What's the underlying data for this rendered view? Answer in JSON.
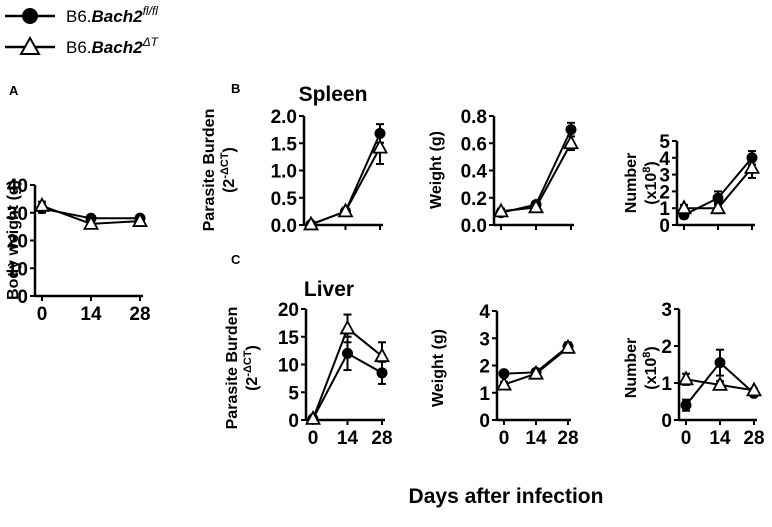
{
  "legend": [
    {
      "prefix": "B6.",
      "gene": "Bach2",
      "sup": "fl/fl",
      "marker": "filled-circle"
    },
    {
      "prefix": "B6.",
      "gene": "Bach2",
      "sup": "ΔT",
      "marker": "open-triangle"
    }
  ],
  "panel_letters": {
    "a": "A",
    "b": "B",
    "c": "C"
  },
  "titles": {
    "spleen": "Spleen",
    "liver": "Liver"
  },
  "x_axis_label": "Days after infection",
  "chart_data": [
    {
      "id": "A",
      "type": "line",
      "title": "",
      "ylabel": "Body weight (g)",
      "ylim": [
        0,
        40
      ],
      "yticks": [
        0,
        10,
        20,
        30,
        40
      ],
      "x": [
        0,
        14,
        28
      ],
      "xticks": [
        0,
        14,
        28
      ],
      "xlim": [
        0,
        28
      ],
      "series": [
        {
          "marker": "filled-circle",
          "values": [
            31.5,
            28,
            28
          ],
          "errors": [
            1.5,
            0.5,
            0.5
          ]
        },
        {
          "marker": "open-triangle",
          "values": [
            32.5,
            26,
            27
          ],
          "errors": [
            1.5,
            1,
            0.5
          ]
        }
      ]
    },
    {
      "id": "B-parasite",
      "type": "line",
      "title": "Spleen",
      "ylabel": "Parasite Burden",
      "ylabel_sub": "(2",
      "ylabel_sup": "-ΔCT",
      "ylabel_end": ")",
      "ylim": [
        0,
        2
      ],
      "yticks": [
        0.0,
        0.5,
        1.0,
        1.5,
        2.0
      ],
      "x": [
        0,
        14,
        28
      ],
      "xticks": [],
      "xlim": [
        0,
        28
      ],
      "series": [
        {
          "marker": "filled-circle",
          "values": [
            0.01,
            0.25,
            1.68
          ],
          "errors": [
            0.01,
            0.03,
            0.17
          ]
        },
        {
          "marker": "open-triangle",
          "values": [
            0.01,
            0.25,
            1.42
          ],
          "errors": [
            0.01,
            0.03,
            0.3
          ]
        }
      ]
    },
    {
      "id": "B-weight",
      "type": "line",
      "title": "",
      "ylabel": "Weight (g)",
      "ylim": [
        0,
        0.8
      ],
      "yticks": [
        0.0,
        0.2,
        0.4,
        0.6,
        0.8
      ],
      "x": [
        0,
        14,
        28
      ],
      "xticks": [],
      "xlim": [
        0,
        28
      ],
      "series": [
        {
          "marker": "filled-circle",
          "values": [
            0.09,
            0.15,
            0.7
          ],
          "errors": [
            0.02,
            0.02,
            0.05
          ]
        },
        {
          "marker": "open-triangle",
          "values": [
            0.1,
            0.13,
            0.6
          ],
          "errors": [
            0.02,
            0.02,
            0.05
          ]
        }
      ]
    },
    {
      "id": "B-number",
      "type": "line",
      "title": "",
      "ylabel": "Number",
      "ylabel_sub": "(x10",
      "ylabel_sup": "8",
      "ylabel_end": ")",
      "ylim": [
        0,
        5
      ],
      "yticks": [
        0,
        1,
        2,
        3,
        4,
        5
      ],
      "x": [
        0,
        14,
        28
      ],
      "xticks": [],
      "xlim": [
        0,
        28
      ],
      "series": [
        {
          "marker": "filled-circle",
          "values": [
            0.6,
            1.6,
            4.0
          ],
          "errors": [
            0.2,
            0.4,
            0.4
          ]
        },
        {
          "marker": "open-triangle",
          "values": [
            1.0,
            1.0,
            3.4
          ],
          "errors": [
            0.2,
            0.3,
            0.6
          ]
        }
      ]
    },
    {
      "id": "C-parasite",
      "type": "line",
      "title": "Liver",
      "ylabel": "Parasite Burden",
      "ylabel_sub": "(2",
      "ylabel_sup": "-ΔCT",
      "ylabel_end": ")",
      "ylim": [
        0,
        20
      ],
      "yticks": [
        0,
        5,
        10,
        15,
        20
      ],
      "x": [
        0,
        14,
        28
      ],
      "xticks": [
        0,
        14,
        28
      ],
      "xlim": [
        0,
        28
      ],
      "series": [
        {
          "marker": "filled-circle",
          "values": [
            0.2,
            12,
            8.5
          ],
          "errors": [
            0.2,
            3,
            2
          ]
        },
        {
          "marker": "open-triangle",
          "values": [
            0.2,
            16.5,
            11.5
          ],
          "errors": [
            0.2,
            2.5,
            2.5
          ]
        }
      ]
    },
    {
      "id": "C-weight",
      "type": "line",
      "title": "",
      "ylabel": "Weight (g)",
      "ylim": [
        0,
        4
      ],
      "yticks": [
        0,
        1,
        2,
        3,
        4
      ],
      "x": [
        0,
        14,
        28
      ],
      "xticks": [
        0,
        14,
        28
      ],
      "xlim": [
        0,
        28
      ],
      "series": [
        {
          "marker": "filled-circle",
          "values": [
            1.7,
            1.75,
            2.7
          ],
          "errors": [
            0.1,
            0.1,
            0.15
          ]
        },
        {
          "marker": "open-triangle",
          "values": [
            1.3,
            1.7,
            2.65
          ],
          "errors": [
            0.1,
            0.1,
            0.15
          ]
        }
      ]
    },
    {
      "id": "C-number",
      "type": "line",
      "title": "",
      "ylabel": "Number",
      "ylabel_sub": "(x10",
      "ylabel_sup": "8",
      "ylabel_end": ")",
      "ylim": [
        0,
        3
      ],
      "yticks": [
        0,
        1,
        2,
        3
      ],
      "x": [
        0,
        14,
        28
      ],
      "xticks": [
        0,
        14,
        28
      ],
      "xlim": [
        0,
        28
      ],
      "series": [
        {
          "marker": "filled-circle",
          "values": [
            0.4,
            1.55,
            0.72
          ],
          "errors": [
            0.15,
            0.35,
            0.05
          ]
        },
        {
          "marker": "open-triangle",
          "values": [
            1.1,
            0.95,
            0.8
          ],
          "errors": [
            0.15,
            0.1,
            0.05
          ]
        }
      ]
    }
  ]
}
